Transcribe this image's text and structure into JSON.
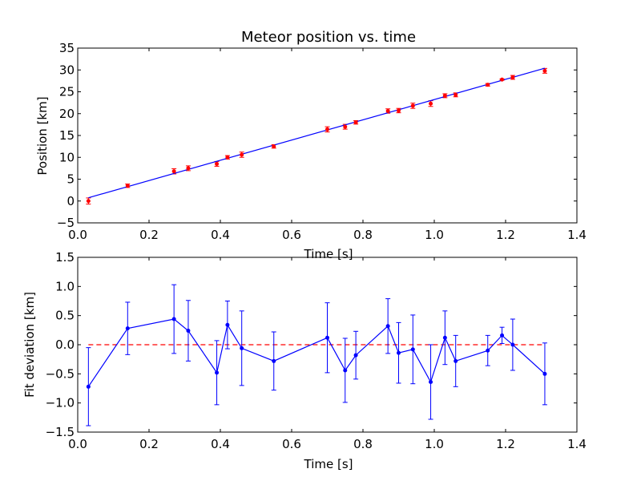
{
  "colors": {
    "fit": "#0000ff",
    "data": "#ff0000",
    "zero_line": "#ff0000",
    "axes": "#000000",
    "background": "#ffffff"
  },
  "chart_data": [
    {
      "type": "scatter",
      "title": "Meteor position vs. time",
      "xlabel": "Time [s]",
      "ylabel": "Position [km]",
      "xlim": [
        0.0,
        1.4
      ],
      "ylim": [
        -5,
        35
      ],
      "xticks": [
        "0.0",
        "0.2",
        "0.4",
        "0.6",
        "0.8",
        "1.0",
        "1.2",
        "1.4"
      ],
      "yticks": [
        "−5",
        "0",
        "5",
        "10",
        "15",
        "20",
        "25",
        "30",
        "35"
      ],
      "grid": false,
      "series": [
        {
          "kind": "points-with-errorbars",
          "x": [
            0.03,
            0.14,
            0.27,
            0.31,
            0.39,
            0.42,
            0.46,
            0.55,
            0.7,
            0.75,
            0.78,
            0.87,
            0.9,
            0.94,
            0.99,
            1.03,
            1.06,
            1.15,
            1.19,
            1.22,
            1.31
          ],
          "y": [
            0.0,
            3.5,
            6.8,
            7.5,
            8.5,
            10.0,
            10.6,
            12.5,
            16.4,
            17.0,
            18.0,
            20.6,
            20.7,
            21.8,
            22.3,
            24.1,
            24.3,
            26.6,
            27.8,
            28.3,
            29.8
          ],
          "yerr": [
            0.7,
            0.4,
            0.6,
            0.55,
            0.55,
            0.4,
            0.6,
            0.4,
            0.6,
            0.55,
            0.4,
            0.5,
            0.5,
            0.6,
            0.65,
            0.45,
            0.45,
            0.3,
            0.15,
            0.45,
            0.55
          ]
        },
        {
          "kind": "fit-line",
          "x": [
            0.03,
            1.31
          ],
          "y": [
            0.75,
            30.4
          ]
        }
      ]
    },
    {
      "type": "line",
      "title": "",
      "xlabel": "Time [s]",
      "ylabel": "Fit deviation [km]",
      "xlim": [
        0.0,
        1.4
      ],
      "ylim": [
        -1.5,
        1.5
      ],
      "xticks": [
        "0.0",
        "0.2",
        "0.4",
        "0.6",
        "0.8",
        "1.0",
        "1.2",
        "1.4"
      ],
      "yticks": [
        "−1.5",
        "−1.0",
        "−0.5",
        "0.0",
        "0.5",
        "1.0",
        "1.5"
      ],
      "grid": false,
      "reference_line": {
        "y": 0.0,
        "style": "dashed",
        "x": [
          0.03,
          1.31
        ]
      },
      "series": [
        {
          "kind": "line-with-errorbars",
          "x": [
            0.03,
            0.14,
            0.27,
            0.31,
            0.39,
            0.42,
            0.46,
            0.55,
            0.7,
            0.75,
            0.78,
            0.87,
            0.9,
            0.94,
            0.99,
            1.03,
            1.06,
            1.15,
            1.19,
            1.22,
            1.31
          ],
          "y": [
            -0.72,
            0.28,
            0.44,
            0.24,
            -0.48,
            0.34,
            -0.06,
            -0.28,
            0.12,
            -0.44,
            -0.18,
            0.32,
            -0.14,
            -0.08,
            -0.64,
            0.12,
            -0.28,
            -0.1,
            0.16,
            0.0,
            -0.5
          ],
          "yerr": [
            0.67,
            0.45,
            0.59,
            0.52,
            0.55,
            0.41,
            0.64,
            0.5,
            0.6,
            0.55,
            0.41,
            0.47,
            0.52,
            0.59,
            0.64,
            0.46,
            0.44,
            0.26,
            0.14,
            0.44,
            0.53
          ]
        }
      ]
    }
  ]
}
